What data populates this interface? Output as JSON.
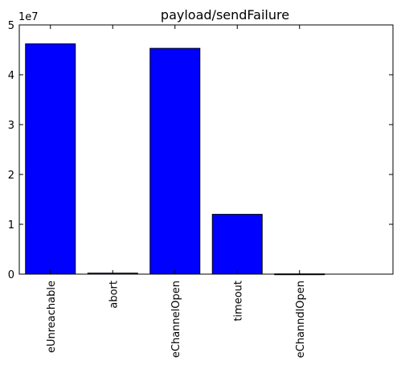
{
  "chart_data": {
    "type": "bar",
    "title": "payload/sendFailure",
    "xlabel": "",
    "ylabel": "",
    "categories": [
      "eUnreachable",
      "abort",
      "eChannelOpen",
      "timeout",
      "eChanndlOpen"
    ],
    "values": [
      46200000,
      200000,
      45300000,
      12000000,
      50000
    ],
    "ylim": [
      0,
      50000000
    ],
    "yticks": [
      0,
      10000000,
      20000000,
      30000000,
      40000000,
      50000000
    ],
    "ytick_labels": [
      "0",
      "1",
      "2",
      "3",
      "4",
      "5"
    ],
    "y_offset_label": "1e7",
    "grid": false,
    "bar_color": "#0000ff",
    "edge_color": "#000000"
  }
}
